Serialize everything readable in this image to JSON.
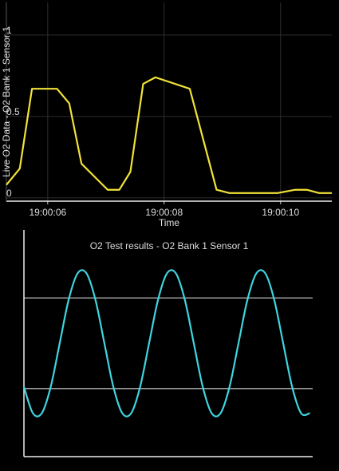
{
  "chart_data": [
    {
      "type": "line",
      "y_label": "Live O2 Data - O2 Bank 1 Sensor 1",
      "x_label": "Time",
      "x": [
        5.29,
        5.52,
        5.73,
        6.16,
        6.37,
        6.58,
        7.03,
        7.23,
        7.42,
        7.64,
        7.85,
        8.44,
        8.9,
        9.12,
        9.95,
        10.25,
        10.45,
        10.66,
        10.88
      ],
      "series": [
        {
          "color": "#f2e338",
          "values": [
            0.08,
            0.18,
            0.67,
            0.67,
            0.58,
            0.21,
            0.05,
            0.05,
            0.16,
            0.7,
            0.74,
            0.67,
            0.05,
            0.03,
            0.03,
            0.05,
            0.05,
            0.03,
            0.03
          ]
        }
      ],
      "xlim": [
        5.29,
        10.88
      ],
      "ylim": [
        -0.02,
        1.2
      ],
      "xticks": [
        {
          "value": 6,
          "label": "19:00:06"
        },
        {
          "value": 8,
          "label": "19:00:08"
        },
        {
          "value": 10,
          "label": "19:00:10"
        }
      ],
      "yticks": [
        0,
        0.5,
        1
      ],
      "grid": true,
      "smooth": false
    },
    {
      "type": "line",
      "title": "O2 Test results - O2 Bank 1 Sensor 1",
      "x": [
        0,
        0.1,
        0.2,
        0.3,
        0.4,
        0.5,
        0.6,
        0.7,
        0.8,
        0.9,
        1,
        1.1,
        1.2,
        1.3,
        1.4,
        1.5,
        1.6,
        1.7,
        1.8,
        1.9,
        2,
        2.1,
        2.2,
        2.3,
        2.4,
        2.5,
        2.6,
        2.7,
        2.8,
        2.9,
        3,
        3.1,
        3.2
      ],
      "series": [
        {
          "color": "#3fd5df",
          "values": [
            0.37,
            0.23,
            0.23,
            0.37,
            0.6,
            0.83,
            0.97,
            0.97,
            0.83,
            0.6,
            0.37,
            0.23,
            0.23,
            0.37,
            0.6,
            0.83,
            0.97,
            0.97,
            0.83,
            0.6,
            0.37,
            0.23,
            0.23,
            0.37,
            0.6,
            0.83,
            0.97,
            0.97,
            0.83,
            0.6,
            0.37,
            0.23,
            0.23
          ]
        }
      ],
      "reference_lines": [
        0.84,
        0.36
      ],
      "reference_color": "#9a9a9a",
      "xlim": [
        0,
        3.23
      ],
      "ylim": [
        0,
        1.2
      ],
      "grid": false,
      "smooth": true
    }
  ]
}
